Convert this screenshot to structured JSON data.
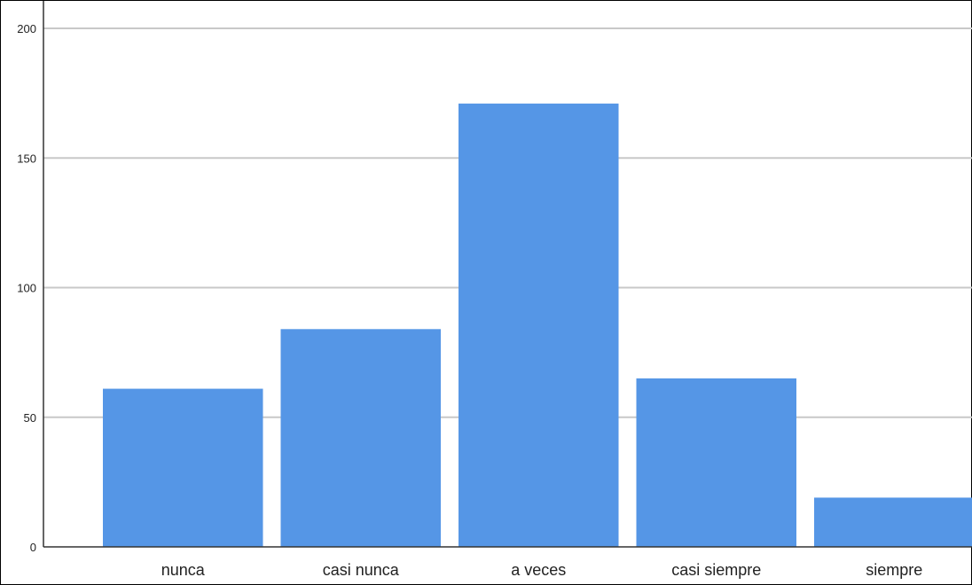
{
  "chart_data": {
    "type": "bar",
    "title": "",
    "xlabel": "",
    "ylabel": "",
    "categories": [
      "nunca",
      "casi nunca",
      "a veces",
      "casi siempre",
      "siempre"
    ],
    "values": [
      61,
      84,
      171,
      65,
      19
    ],
    "ylim": [
      0,
      200
    ],
    "yticks": [
      0,
      50,
      100,
      150,
      200
    ],
    "grid": true,
    "legend": "none",
    "colors": {
      "bar": "#5596e6",
      "grid": "#c8c8c8",
      "axis": "#333333"
    }
  }
}
